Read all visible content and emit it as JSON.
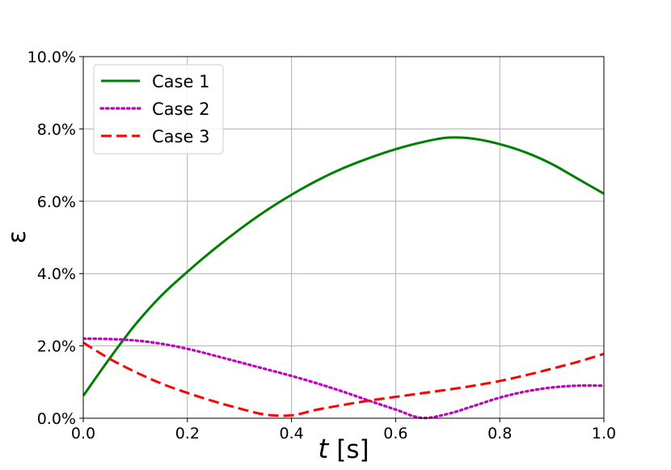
{
  "chart_data": {
    "type": "line",
    "title": "",
    "xlabel_symbol": "t",
    "xlabel_unit": "[s]",
    "ylabel": "ε",
    "xlim": [
      0.0,
      1.0
    ],
    "ylim": [
      0.0,
      0.1
    ],
    "grid": true,
    "legend_position": "top-left",
    "x_ticks": [
      {
        "value": 0.0,
        "label": "0.0"
      },
      {
        "value": 0.2,
        "label": "0.2"
      },
      {
        "value": 0.4,
        "label": "0.4"
      },
      {
        "value": 0.6,
        "label": "0.6"
      },
      {
        "value": 0.8,
        "label": "0.8"
      },
      {
        "value": 1.0,
        "label": "1.0"
      }
    ],
    "y_ticks": [
      {
        "value": 0.0,
        "label": "0.0%"
      },
      {
        "value": 0.02,
        "label": "2.0%"
      },
      {
        "value": 0.04,
        "label": "4.0%"
      },
      {
        "value": 0.06,
        "label": "6.0%"
      },
      {
        "value": 0.08,
        "label": "8.0%"
      },
      {
        "value": 0.1,
        "label": "10.0%"
      }
    ],
    "x": [
      0.0,
      0.05,
      0.1,
      0.15,
      0.2,
      0.25,
      0.3,
      0.35,
      0.4,
      0.45,
      0.5,
      0.55,
      0.6,
      0.65,
      0.7,
      0.75,
      0.8,
      0.85,
      0.9,
      0.95,
      1.0
    ],
    "series": [
      {
        "name": "Case 1",
        "color": "#008000",
        "style": "solid",
        "values": [
          0.0062,
          0.0164,
          0.0259,
          0.0339,
          0.0405,
          0.0466,
          0.0522,
          0.0573,
          0.0618,
          0.0658,
          0.0692,
          0.072,
          0.0744,
          0.0763,
          0.0776,
          0.0773,
          0.0758,
          0.0735,
          0.0703,
          0.0662,
          0.0621
        ]
      },
      {
        "name": "Case 2",
        "color": "#bf00bf",
        "style": "dotted",
        "values": [
          0.022,
          0.0219,
          0.0215,
          0.0206,
          0.0192,
          0.0174,
          0.0155,
          0.0136,
          0.0117,
          0.0096,
          0.0073,
          0.0048,
          0.0024,
          0.0001,
          0.0012,
          0.0034,
          0.0057,
          0.0074,
          0.0085,
          0.009,
          0.009
        ]
      },
      {
        "name": "Case 3",
        "color": "#ff0000",
        "style": "dashed",
        "values": [
          0.0209,
          0.0165,
          0.0128,
          0.0096,
          0.007,
          0.0047,
          0.0027,
          0.001,
          0.0008,
          0.0024,
          0.0037,
          0.0049,
          0.0059,
          0.0069,
          0.0079,
          0.009,
          0.0103,
          0.0119,
          0.0137,
          0.0156,
          0.0178
        ]
      }
    ]
  }
}
